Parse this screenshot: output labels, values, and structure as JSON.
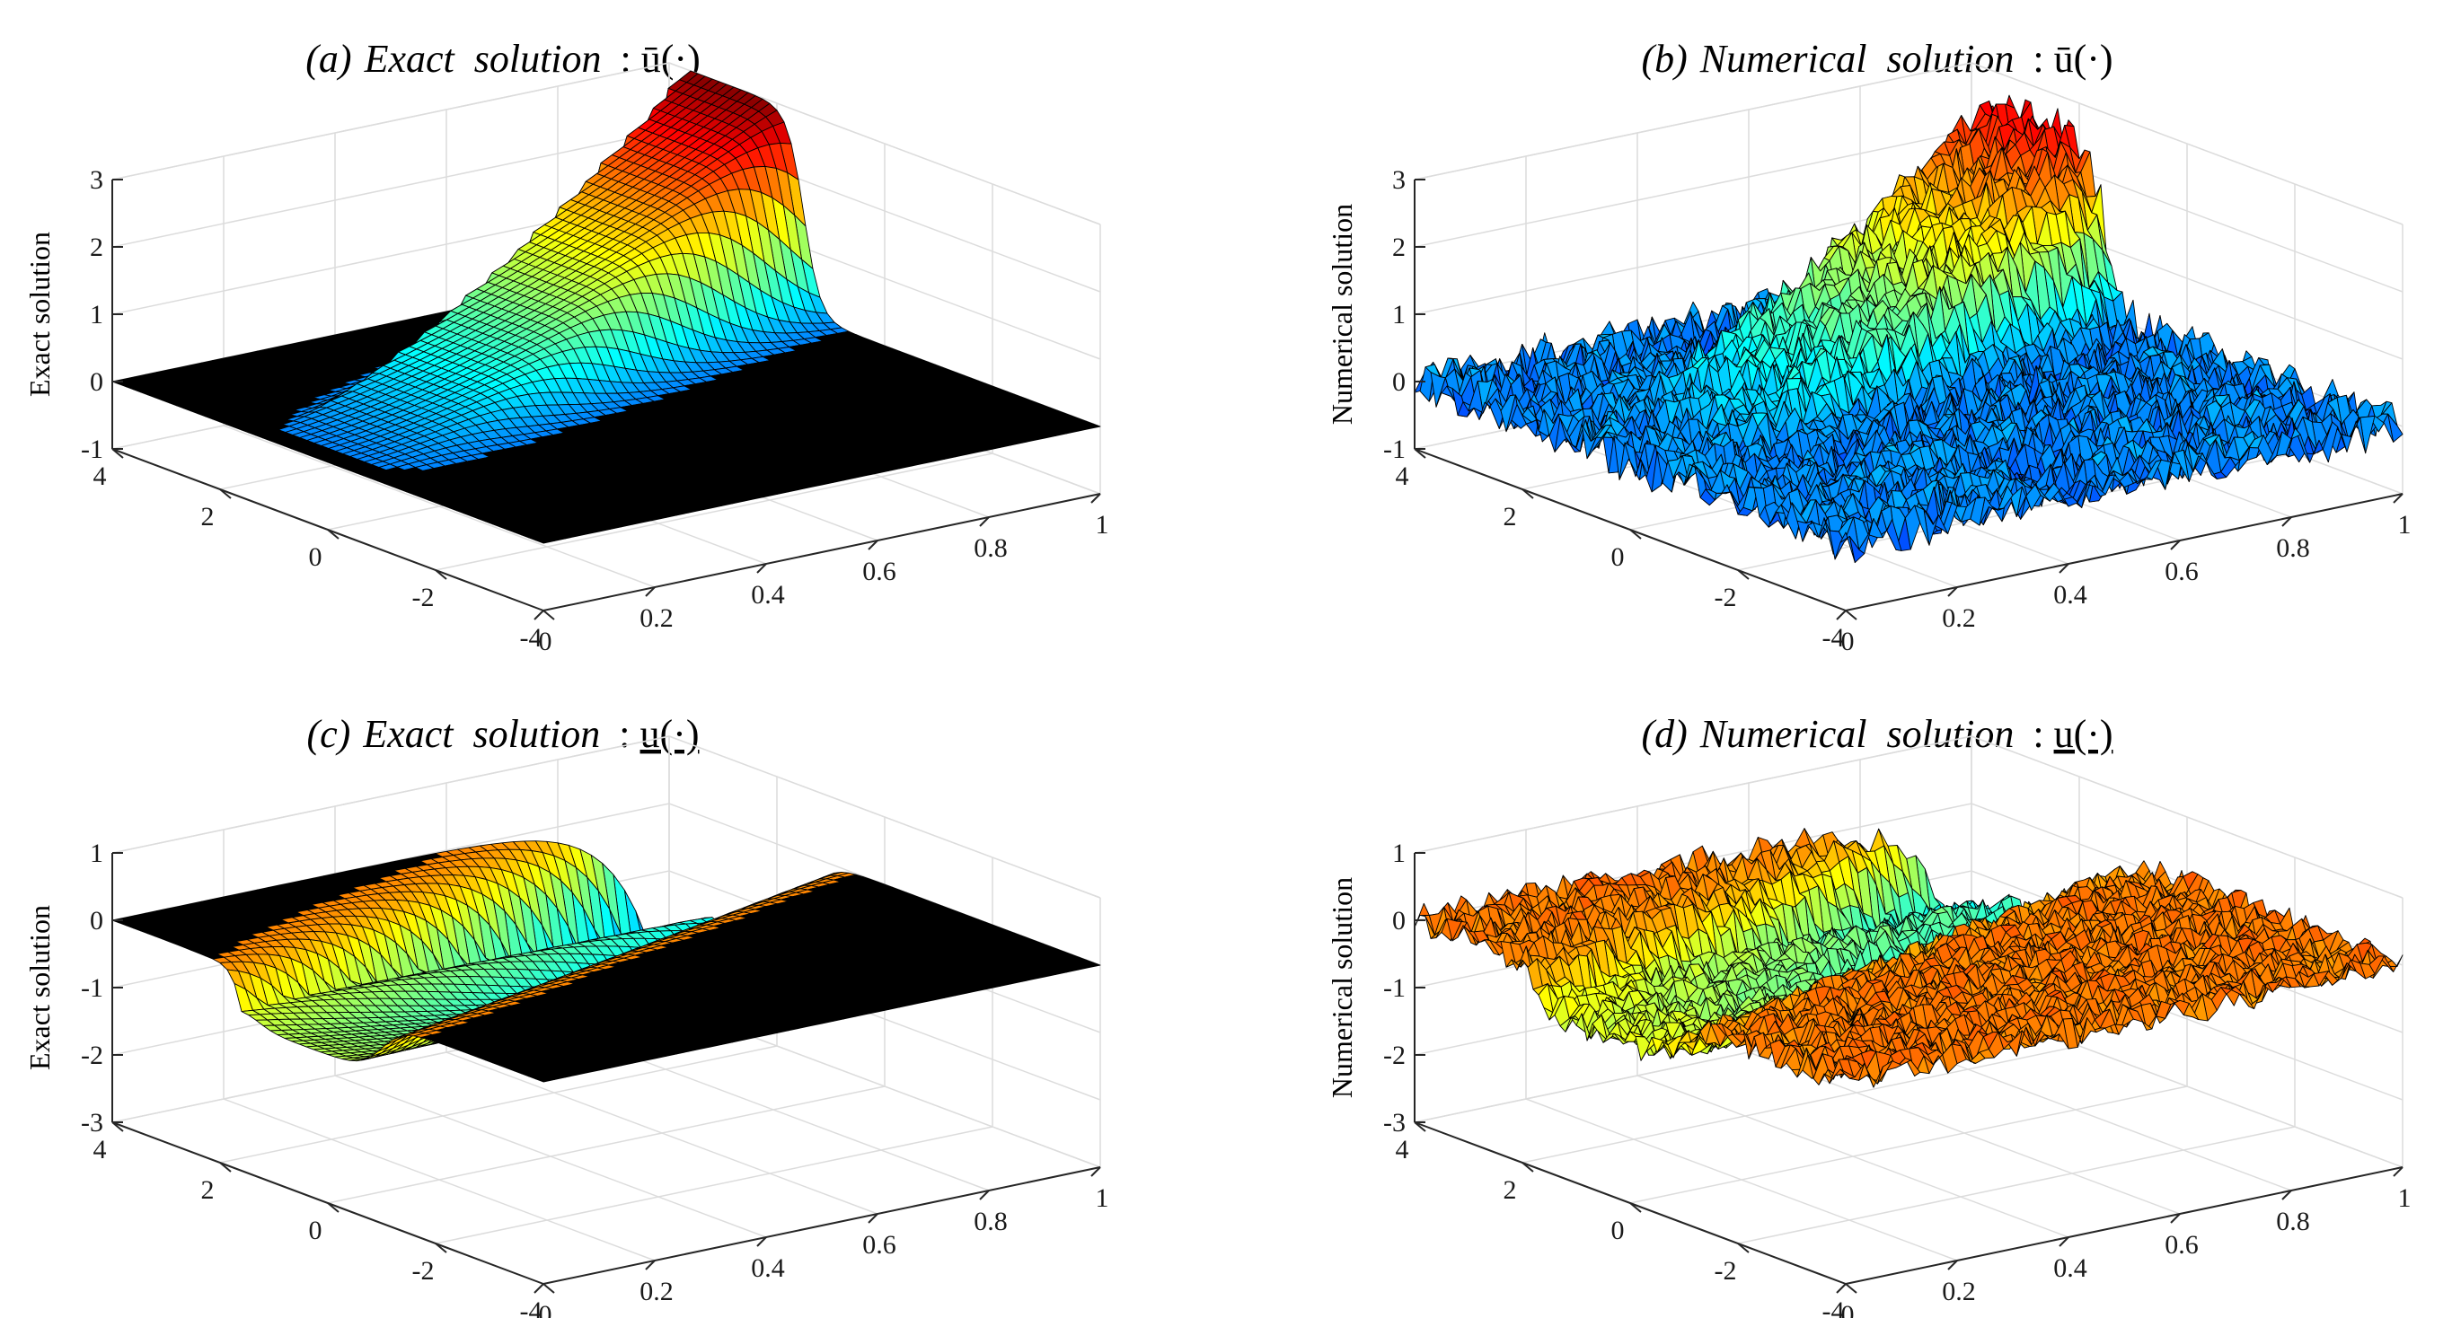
{
  "figure": {
    "panels": [
      {
        "id": "a",
        "title_prefix": "(a)",
        "title_name": "Exact  solution",
        "title_var": "ū(·)",
        "var_accent": "over"
      },
      {
        "id": "b",
        "title_prefix": "(b)",
        "title_name": "Numerical  solution",
        "title_var": "ū(·)",
        "var_accent": "over"
      },
      {
        "id": "c",
        "title_prefix": "(c)",
        "title_name": "Exact  solution",
        "title_var": "u(·)",
        "var_accent": "under"
      },
      {
        "id": "d",
        "title_prefix": "(d)",
        "title_name": "Numerical  solution",
        "title_var": "u(·)",
        "var_accent": "under"
      }
    ]
  },
  "chart_data": [
    {
      "id": "a",
      "type": "surface",
      "title": "(a) Exact solution : ū(·)",
      "zlabel": "Exact solution",
      "noisy": false,
      "colormap": "jet",
      "xlim": [
        -4,
        4
      ],
      "ylim": [
        0,
        1
      ],
      "zlim": [
        -1,
        3
      ],
      "xticks": [
        -4,
        -2,
        0,
        2,
        4
      ],
      "yticks": [
        0,
        0.2,
        0.4,
        0.6,
        0.8,
        1
      ],
      "zticks": [
        -1,
        0,
        1,
        2,
        3
      ],
      "xtick_labels": [
        "-4",
        "-2",
        "0",
        "2",
        "4"
      ],
      "ytick_labels": [
        "0",
        "0.2",
        "0.4",
        "0.6",
        "0.8",
        "1"
      ],
      "ztick_labels": [
        "-1",
        "0",
        "1",
        "2",
        "3"
      ],
      "features": [
        {
          "kind": "ramp",
          "amp": 3.0,
          "center_start": -1.0,
          "speed": 2.5,
          "width": 0.45
        }
      ]
    },
    {
      "id": "b",
      "type": "surface",
      "title": "(b) Numerical solution : ū(·)",
      "zlabel": "Numerical solution",
      "noisy": true,
      "noise_amp": 0.32,
      "colormap": "jet",
      "xlim": [
        -4,
        4
      ],
      "ylim": [
        0,
        1
      ],
      "zlim": [
        -1,
        3
      ],
      "xticks": [
        -4,
        -2,
        0,
        2,
        4
      ],
      "yticks": [
        0,
        0.2,
        0.4,
        0.6,
        0.8,
        1
      ],
      "zticks": [
        -1,
        0,
        1,
        2,
        3
      ],
      "xtick_labels": [
        "-4",
        "-2",
        "0",
        "2",
        "4"
      ],
      "ytick_labels": [
        "0",
        "0.2",
        "0.4",
        "0.6",
        "0.8",
        "1"
      ],
      "ztick_labels": [
        "-1",
        "0",
        "1",
        "2",
        "3"
      ],
      "features": [
        {
          "kind": "ramp",
          "amp": 2.5,
          "center_start": -1.0,
          "speed": 2.5,
          "width": 0.45
        }
      ]
    },
    {
      "id": "c",
      "type": "surface",
      "title": "(c) Exact solution : u(·)",
      "zlabel": "Exact solution",
      "noisy": false,
      "colormap": "jet",
      "xlim": [
        -4,
        4
      ],
      "ylim": [
        0,
        1
      ],
      "zlim": [
        -3,
        1
      ],
      "xticks": [
        -4,
        -2,
        0,
        2,
        4
      ],
      "yticks": [
        0,
        0.2,
        0.4,
        0.6,
        0.8,
        1
      ],
      "zticks": [
        -3,
        -2,
        -1,
        0,
        1
      ],
      "xtick_labels": [
        "-4",
        "-2",
        "0",
        "2",
        "4"
      ],
      "ytick_labels": [
        "0",
        "0.2",
        "0.4",
        "0.6",
        "0.8",
        "1"
      ],
      "ztick_labels": [
        "-3",
        "-2",
        "-1",
        "0",
        "1"
      ],
      "features": [
        {
          "kind": "valley",
          "amp": -2.0,
          "center_start": -1.0,
          "speed": 2.5,
          "width": 0.5
        },
        {
          "kind": "ridge",
          "amp": 0.55,
          "center_start": 1.6,
          "speed": 1.6,
          "width": 0.45
        }
      ]
    },
    {
      "id": "d",
      "type": "surface",
      "title": "(d) Numerical solution : u(·)",
      "zlabel": "Numerical solution",
      "noisy": true,
      "noise_amp": 0.22,
      "colormap": "jet",
      "xlim": [
        -4,
        4
      ],
      "ylim": [
        0,
        1
      ],
      "zlim": [
        -3,
        1
      ],
      "xticks": [
        -4,
        -2,
        0,
        2,
        4
      ],
      "yticks": [
        0,
        0.2,
        0.4,
        0.6,
        0.8,
        1
      ],
      "zticks": [
        -3,
        -2,
        -1,
        0,
        1
      ],
      "xtick_labels": [
        "-4",
        "-2",
        "0",
        "2",
        "4"
      ],
      "ytick_labels": [
        "0",
        "0.2",
        "0.4",
        "0.6",
        "0.8",
        "1"
      ],
      "ztick_labels": [
        "-3",
        "-2",
        "-1",
        "0",
        "1"
      ],
      "features": [
        {
          "kind": "valley",
          "amp": -1.6,
          "center_start": -1.0,
          "speed": 2.5,
          "width": 0.5
        },
        {
          "kind": "ridge",
          "amp": 0.3,
          "center_start": 1.6,
          "speed": 1.6,
          "width": 0.45
        }
      ]
    }
  ]
}
